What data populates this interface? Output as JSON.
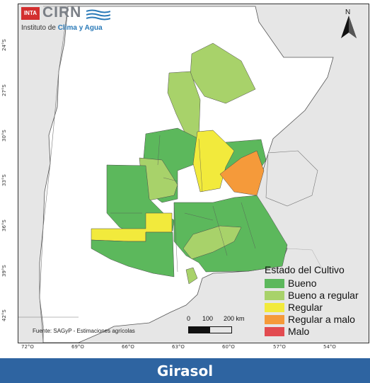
{
  "logo": {
    "inta_text": "INTA",
    "cirn_text": "CIRN",
    "subtitle_prefix": "Instituto de ",
    "subtitle_highlight": "Clima y Agua"
  },
  "north_label": "N",
  "lat_ticks": [
    "24°S",
    "27°S",
    "30°S",
    "33°S",
    "36°S",
    "39°S",
    "42°S"
  ],
  "lon_ticks": [
    "72°O",
    "69°O",
    "66°O",
    "63°O",
    "60°O",
    "57°O",
    "54°O"
  ],
  "legend": {
    "title": "Estado del Cultivo",
    "items": [
      {
        "label": "Bueno",
        "color": "#5cb85c"
      },
      {
        "label": "Bueno a regular",
        "color": "#a8d26a"
      },
      {
        "label": "Regular",
        "color": "#f2ea3c"
      },
      {
        "label": "Regular a malo",
        "color": "#f59a3a"
      },
      {
        "label": "Malo",
        "color": "#e24b50"
      }
    ]
  },
  "scale": {
    "labels": [
      "0",
      "100",
      "200 km"
    ]
  },
  "source_text": "Fuente: SAGyP - Estimaciones agrícolas",
  "banner_title": "Girasol",
  "colors": {
    "banner": "#2e64a1",
    "land": "#ffffff",
    "neighbor": "#e6e6e6",
    "bueno": "#5cb85c",
    "bueno_a_regular": "#a8d26a",
    "regular": "#f2ea3c",
    "regular_a_malo": "#f59a3a"
  }
}
